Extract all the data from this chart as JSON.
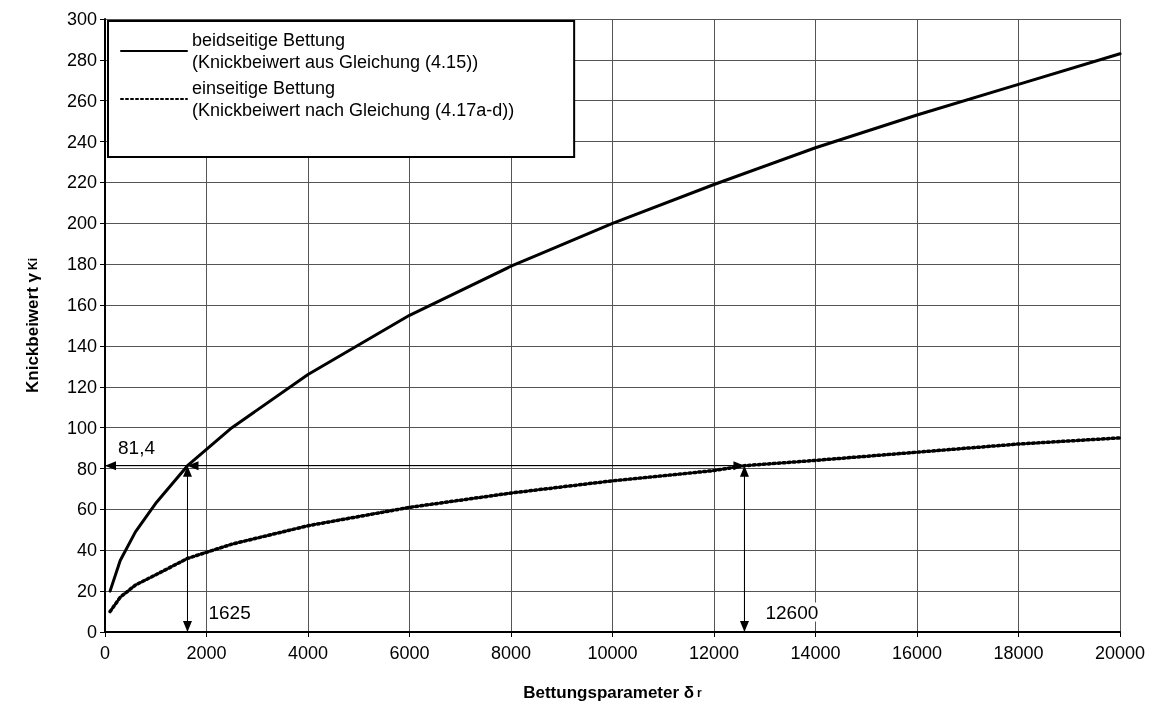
{
  "chart_data": {
    "type": "line",
    "xlabel": "Bettungsparameter δ$_{r}$",
    "ylabel": "Knickbeiwert γ$_{Ki}$",
    "series": [
      {
        "name": "beidseitige Bettung\n(Knickbeiwert aus Gleichung (4.15))",
        "color": "#000000",
        "line_style": "solid",
        "x": [
          100,
          300,
          600,
          1000,
          1625,
          2500,
          4000,
          6000,
          8000,
          10000,
          12000,
          14000,
          16000,
          18000,
          20000
        ],
        "values": [
          20,
          35,
          49,
          63,
          81.4,
          100,
          126,
          155,
          179,
          200,
          219,
          237,
          253,
          268,
          283
        ]
      },
      {
        "name": "einseitige Bettung\n(Knickbeiwert nach Gleichung (4.17a-d))",
        "color": "#000000",
        "line_style": "dotted",
        "x": [
          100,
          300,
          600,
          1000,
          1625,
          2500,
          4000,
          6000,
          8000,
          10000,
          12000,
          12600,
          14000,
          16000,
          18000,
          20000
        ],
        "values": [
          10,
          17,
          23,
          28,
          36,
          43,
          52,
          61,
          68,
          74,
          79,
          81.4,
          84,
          88,
          92,
          95
        ]
      }
    ],
    "xlim": [
      0,
      20000
    ],
    "xticks": [
      0,
      2000,
      4000,
      6000,
      8000,
      10000,
      12000,
      14000,
      16000,
      18000,
      20000
    ],
    "ylim": [
      0,
      300
    ],
    "yticks": [
      0,
      20,
      40,
      60,
      80,
      100,
      120,
      140,
      160,
      180,
      200,
      220,
      240,
      260,
      280,
      300
    ],
    "grid": true,
    "legend": "top left",
    "marker": "none",
    "ref_lines": [
      {
        "axis": "y",
        "value": 81.4,
        "label": "81,4"
      },
      {
        "axis": "x",
        "value": 1625,
        "label": "1625"
      },
      {
        "axis": "x",
        "value": 12600,
        "label": "12600"
      }
    ]
  }
}
